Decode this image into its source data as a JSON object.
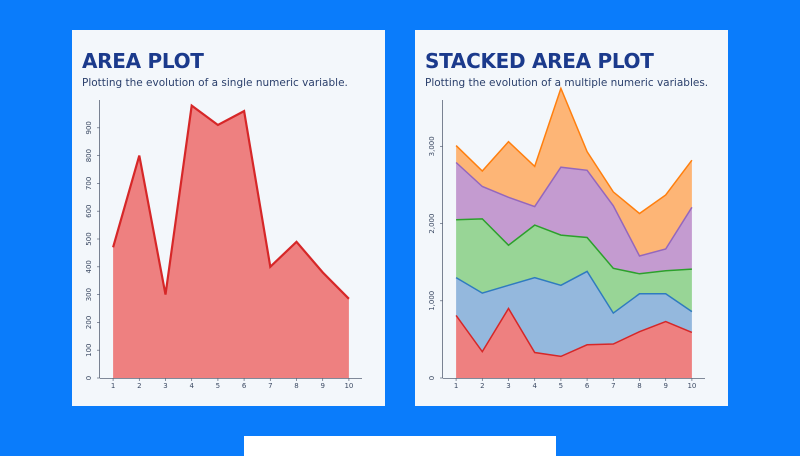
{
  "area": {
    "title": "AREA PLOT",
    "subtitle": "Plotting the evolution of a single numeric variable."
  },
  "stacked": {
    "title": "STACKED AREA PLOT",
    "subtitle": "Plotting the evolution of a multiple numeric variables."
  },
  "chart_data": [
    {
      "type": "area",
      "title": "AREA PLOT",
      "subtitle": "Plotting the evolution of a single numeric variable.",
      "x": [
        1,
        2,
        3,
        4,
        5,
        6,
        7,
        8,
        9,
        10
      ],
      "series": [
        {
          "values": [
            470,
            800,
            300,
            980,
            910,
            960,
            400,
            490,
            380,
            285
          ],
          "color": "#ee8080",
          "line_color": "#d62728"
        }
      ],
      "xlim": [
        0.5,
        10.5
      ],
      "ylim": [
        0,
        1000
      ],
      "yticks": [
        0,
        100,
        200,
        300,
        400,
        500,
        600,
        700,
        800,
        900
      ],
      "ytick_labels": [
        "0",
        "100",
        "200",
        "300",
        "400",
        "500",
        "600",
        "700",
        "800",
        "900"
      ],
      "xticks": [
        1,
        2,
        3,
        4,
        5,
        6,
        7,
        8,
        9,
        10
      ],
      "grid": false,
      "legend": "none"
    },
    {
      "type": "area",
      "stacked": true,
      "title": "STACKED AREA PLOT",
      "subtitle": "Plotting the evolution of a multiple numeric variables.",
      "x": [
        1,
        2,
        3,
        4,
        5,
        6,
        7,
        8,
        9,
        10
      ],
      "series": [
        {
          "values": [
            810,
            340,
            900,
            330,
            280,
            430,
            440,
            600,
            730,
            590
          ],
          "color": "#ee8080",
          "line_color": "#d62728"
        },
        {
          "values": [
            490,
            760,
            300,
            970,
            920,
            950,
            400,
            490,
            360,
            270
          ],
          "color": "#94b8dd",
          "line_color": "#2f7bbf"
        },
        {
          "values": [
            750,
            960,
            520,
            680,
            650,
            440,
            580,
            260,
            300,
            550
          ],
          "color": "#98d596",
          "line_color": "#2ca02c"
        },
        {
          "values": [
            740,
            420,
            620,
            240,
            880,
            870,
            810,
            230,
            280,
            800
          ],
          "color": "#c49bd0",
          "line_color": "#9467bd"
        },
        {
          "values": [
            220,
            200,
            720,
            520,
            1020,
            240,
            180,
            550,
            700,
            610
          ],
          "color": "#fdb576",
          "line_color": "#ff7f0e"
        }
      ],
      "xlim": [
        0.5,
        10.5
      ],
      "ylim": [
        0,
        3600
      ],
      "yticks": [
        0,
        1000,
        2000,
        3000
      ],
      "ytick_labels": [
        "0",
        "1,000",
        "2,000",
        "3,000"
      ],
      "xticks": [
        1,
        2,
        3,
        4,
        5,
        6,
        7,
        8,
        9,
        10
      ],
      "grid": false,
      "legend": "none"
    }
  ]
}
